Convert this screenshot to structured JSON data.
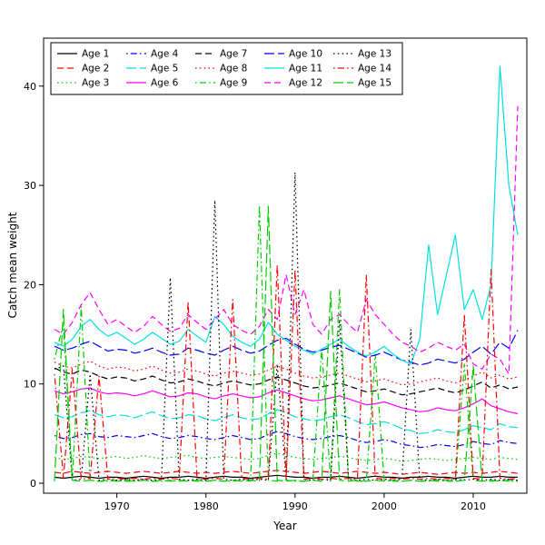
{
  "figure": {
    "background_color": "#ffffff",
    "axis_color": "#000000"
  },
  "chart_data": {
    "type": "line",
    "title": "",
    "xlabel": "Year",
    "ylabel": "Catch mean weight",
    "xlim": [
      1963,
      2015
    ],
    "ylim": [
      0,
      43
    ],
    "x_ticks": [
      1970,
      1980,
      1990,
      2000,
      2010
    ],
    "y_ticks": [
      0,
      10,
      20,
      30,
      40
    ],
    "grid": false,
    "legend_position": "top-left-inside",
    "legend_columns": 5,
    "x": [
      1963,
      1964,
      1965,
      1966,
      1967,
      1968,
      1969,
      1970,
      1971,
      1972,
      1973,
      1974,
      1975,
      1976,
      1977,
      1978,
      1979,
      1980,
      1981,
      1982,
      1983,
      1984,
      1985,
      1986,
      1987,
      1988,
      1989,
      1990,
      1991,
      1992,
      1993,
      1994,
      1995,
      1996,
      1997,
      1998,
      1999,
      2000,
      2001,
      2002,
      2003,
      2004,
      2005,
      2006,
      2007,
      2008,
      2009,
      2010,
      2011,
      2012,
      2013,
      2014,
      2015
    ],
    "series": [
      {
        "name": "Age 1",
        "color": "#000000",
        "linetype": "solid",
        "values": [
          0.6,
          0.5,
          0.6,
          0.7,
          0.6,
          0.5,
          0.6,
          0.6,
          0.5,
          0.6,
          0.7,
          0.6,
          0.5,
          0.6,
          0.6,
          0.7,
          0.6,
          0.5,
          0.6,
          0.7,
          0.6,
          0.6,
          0.5,
          0.6,
          0.7,
          0.8,
          0.7,
          0.6,
          0.6,
          0.5,
          0.6,
          0.6,
          0.7,
          0.6,
          0.5,
          0.6,
          0.7,
          0.6,
          0.6,
          0.5,
          0.6,
          0.6,
          0.7,
          0.6,
          0.6,
          0.5,
          0.6,
          0.7,
          0.6,
          0.6,
          0.7,
          0.6,
          0.6
        ]
      },
      {
        "name": "Age 2",
        "color": "#FF0000",
        "linetype": "dashed",
        "values": [
          1.1,
          1.0,
          1.2,
          1.1,
          1.0,
          1.1,
          1.2,
          1.1,
          1.0,
          1.1,
          1.2,
          1.1,
          1.0,
          1.1,
          1.2,
          1.1,
          1.0,
          1.1,
          1.0,
          1.1,
          1.2,
          1.1,
          1.0,
          1.1,
          1.2,
          1.3,
          1.2,
          1.1,
          1.0,
          1.1,
          1.2,
          1.1,
          1.0,
          1.1,
          1.2,
          1.1,
          1.0,
          1.1,
          1.0,
          0.9,
          1.0,
          1.1,
          1.0,
          0.9,
          1.0,
          1.1,
          1.0,
          1.1,
          1.0,
          1.1,
          1.2,
          1.1,
          1.0
        ]
      },
      {
        "name": "Age 3",
        "color": "#00CC00",
        "linetype": "dotted",
        "values": [
          2.6,
          2.4,
          2.5,
          2.7,
          2.6,
          2.5,
          2.6,
          2.7,
          2.5,
          2.6,
          2.8,
          2.6,
          2.5,
          2.6,
          2.7,
          2.8,
          2.6,
          2.5,
          2.6,
          2.7,
          2.6,
          2.5,
          2.4,
          2.5,
          2.8,
          3.0,
          2.8,
          2.6,
          2.5,
          2.4,
          2.5,
          2.6,
          2.7,
          2.6,
          2.4,
          2.3,
          2.4,
          2.5,
          2.4,
          2.2,
          2.3,
          2.4,
          2.5,
          2.4,
          2.3,
          2.4,
          2.5,
          2.6,
          2.5,
          2.4,
          2.6,
          2.5,
          2.4
        ]
      },
      {
        "name": "Age 4",
        "color": "#0000FF",
        "linetype": "dotdash",
        "values": [
          4.8,
          4.5,
          4.6,
          4.9,
          5.0,
          4.7,
          4.6,
          4.8,
          4.7,
          4.6,
          4.8,
          5.0,
          4.7,
          4.5,
          4.6,
          4.8,
          4.7,
          4.5,
          4.4,
          4.6,
          4.8,
          4.6,
          4.4,
          4.5,
          4.9,
          5.2,
          5.0,
          4.7,
          4.5,
          4.4,
          4.5,
          4.7,
          4.8,
          4.6,
          4.3,
          4.1,
          4.2,
          4.4,
          4.2,
          3.9,
          3.8,
          3.6,
          3.7,
          3.9,
          3.8,
          3.7,
          3.9,
          4.2,
          4.0,
          3.9,
          4.3,
          4.1,
          4.0
        ]
      },
      {
        "name": "Age 5",
        "color": "#00E0E0",
        "linetype": "longdash",
        "values": [
          6.9,
          6.6,
          6.7,
          7.1,
          7.3,
          6.9,
          6.7,
          6.9,
          6.8,
          6.6,
          6.9,
          7.2,
          6.8,
          6.5,
          6.6,
          6.9,
          6.8,
          6.5,
          6.3,
          6.6,
          6.9,
          6.6,
          6.4,
          6.5,
          7.0,
          7.4,
          7.1,
          6.7,
          6.5,
          6.3,
          6.4,
          6.7,
          6.9,
          6.6,
          6.2,
          5.9,
          6.0,
          6.2,
          5.9,
          5.5,
          5.3,
          5.0,
          5.1,
          5.4,
          5.2,
          5.1,
          5.4,
          5.8,
          5.6,
          5.4,
          6.0,
          5.7,
          5.6
        ]
      },
      {
        "name": "Age 6",
        "color": "#FF00FF",
        "linetype": "solid",
        "values": [
          9.3,
          9.0,
          9.2,
          9.5,
          9.6,
          9.2,
          9.0,
          9.1,
          9.0,
          8.8,
          9.0,
          9.3,
          9.0,
          8.7,
          8.8,
          9.1,
          9.0,
          8.7,
          8.5,
          8.8,
          9.0,
          8.8,
          8.6,
          8.7,
          9.1,
          9.4,
          9.1,
          8.8,
          8.5,
          8.3,
          8.4,
          8.6,
          8.8,
          8.5,
          8.2,
          7.9,
          8.0,
          8.2,
          7.9,
          7.6,
          7.4,
          7.2,
          7.3,
          7.6,
          7.4,
          7.3,
          7.6,
          8.0,
          8.5,
          7.8,
          7.5,
          7.2,
          7.0
        ]
      },
      {
        "name": "Age 7",
        "color": "#000000",
        "linetype": "dashed",
        "values": [
          11.6,
          11.2,
          11.0,
          11.4,
          11.2,
          10.8,
          10.5,
          10.7,
          10.6,
          10.3,
          10.5,
          10.8,
          10.4,
          10.1,
          10.2,
          10.5,
          10.3,
          10.0,
          9.8,
          10.1,
          10.3,
          10.1,
          9.9,
          10.0,
          10.4,
          10.7,
          10.4,
          10.1,
          9.8,
          9.6,
          9.7,
          9.9,
          10.1,
          9.8,
          9.5,
          9.2,
          9.3,
          9.5,
          9.2,
          8.9,
          9.0,
          9.2,
          9.4,
          9.6,
          9.3,
          9.1,
          9.4,
          9.8,
          10.2,
          9.6,
          9.9,
          9.5,
          9.7
        ]
      },
      {
        "name": "Age 8",
        "color": "#FF0000",
        "linetype": "dotted",
        "values": [
          12.2,
          11.8,
          11.6,
          12.0,
          12.3,
          11.8,
          11.5,
          11.7,
          11.6,
          11.3,
          11.5,
          11.8,
          11.4,
          11.1,
          11.2,
          11.5,
          11.3,
          11.0,
          10.8,
          11.1,
          11.3,
          11.1,
          10.9,
          11.0,
          11.4,
          11.8,
          11.5,
          11.1,
          10.8,
          10.6,
          10.7,
          10.9,
          11.1,
          10.8,
          10.5,
          10.2,
          10.3,
          10.5,
          10.2,
          9.9,
          10.0,
          10.2,
          10.4,
          10.6,
          10.3,
          10.1,
          10.4,
          10.8,
          11.2,
          10.6,
          10.9,
          10.5,
          10.7
        ]
      },
      {
        "name": "Age 9",
        "color": "#00CC00",
        "linetype": "dotdash",
        "values": [
          12.5,
          16.0,
          0.2,
          17.8,
          0.3,
          0.2,
          0.2,
          0.3,
          0.2,
          0.2,
          0.3,
          0.2,
          0.2,
          0.3,
          0.2,
          0.3,
          0.2,
          0.2,
          0.3,
          0.2,
          0.2,
          0.3,
          0.2,
          28.0,
          0.3,
          0.2,
          0.3,
          0.2,
          0.2,
          0.3,
          13.5,
          0.2,
          19.5,
          0.3,
          0.2,
          0.2,
          13.0,
          0.3,
          0.2,
          0.2,
          0.3,
          0.2,
          0.2,
          0.3,
          0.2,
          0.2,
          12.0,
          0.3,
          0.2,
          0.2,
          0.3,
          0.2,
          0.2
        ]
      },
      {
        "name": "Age 10",
        "color": "#0000FF",
        "linetype": "longdash",
        "values": [
          13.8,
          13.4,
          13.6,
          14.0,
          14.3,
          13.8,
          13.3,
          13.5,
          13.4,
          13.1,
          13.3,
          13.6,
          13.2,
          12.9,
          13.0,
          13.6,
          13.4,
          13.1,
          12.9,
          13.4,
          13.8,
          13.4,
          13.1,
          13.3,
          13.9,
          14.4,
          14.6,
          14.0,
          13.5,
          13.2,
          13.4,
          13.7,
          13.9,
          13.5,
          13.1,
          12.7,
          12.9,
          13.2,
          12.8,
          12.4,
          12.2,
          11.9,
          12.1,
          12.5,
          12.3,
          12.1,
          12.5,
          13.2,
          13.8,
          13.0,
          14.2,
          13.6,
          15.4
        ]
      },
      {
        "name": "Age 11",
        "color": "#00E0E0",
        "linetype": "solid",
        "values": [
          14.2,
          13.8,
          14.5,
          15.8,
          16.5,
          15.5,
          14.8,
          15.2,
          14.6,
          14.0,
          14.5,
          15.2,
          14.6,
          14.0,
          14.3,
          15.5,
          14.8,
          14.2,
          16.8,
          16.0,
          14.8,
          14.2,
          13.8,
          14.5,
          16.2,
          15.0,
          14.4,
          13.8,
          13.4,
          13.0,
          13.5,
          14.0,
          14.5,
          13.8,
          13.2,
          12.8,
          13.2,
          13.8,
          13.0,
          12.4,
          12.0,
          14.5,
          24.0,
          17.0,
          21.0,
          25.0,
          17.5,
          19.5,
          16.5,
          20.0,
          42.0,
          30.0,
          25.0
        ]
      },
      {
        "name": "Age 12",
        "color": "#FF00FF",
        "linetype": "dashed",
        "values": [
          15.5,
          15.0,
          16.2,
          18.0,
          19.2,
          17.5,
          16.0,
          16.5,
          15.8,
          15.2,
          15.8,
          16.8,
          16.0,
          15.3,
          15.6,
          17.0,
          16.2,
          15.5,
          16.5,
          17.5,
          16.0,
          15.4,
          15.0,
          15.8,
          17.5,
          16.5,
          21.0,
          17.0,
          19.5,
          16.0,
          15.0,
          16.5,
          17.0,
          16.0,
          15.2,
          18.5,
          17.0,
          16.0,
          15.0,
          14.2,
          13.8,
          13.2,
          13.6,
          14.2,
          13.8,
          13.4,
          14.0,
          12.0,
          11.5,
          13.0,
          12.5,
          11.0,
          38.0
        ]
      },
      {
        "name": "Age 13",
        "color": "#000000",
        "linetype": "dotted",
        "values": [
          11.5,
          11.8,
          0.3,
          0.4,
          11.0,
          0.3,
          0.4,
          0.3,
          0.4,
          0.3,
          0.4,
          0.3,
          0.4,
          20.7,
          0.4,
          0.3,
          0.4,
          0.3,
          28.5,
          0.4,
          0.3,
          0.4,
          0.3,
          0.4,
          0.3,
          12.0,
          0.4,
          31.3,
          0.4,
          0.3,
          0.4,
          0.3,
          16.5,
          0.4,
          0.3,
          0.4,
          0.3,
          0.4,
          0.3,
          0.4,
          15.5,
          0.4,
          0.3,
          0.4,
          0.3,
          0.4,
          0.3,
          0.4,
          0.3,
          0.4,
          0.3,
          0.4,
          0.3
        ]
      },
      {
        "name": "Age 14",
        "color": "#FF0000",
        "linetype": "dotdash",
        "values": [
          11.0,
          0.5,
          11.5,
          0.4,
          0.5,
          10.8,
          0.4,
          0.5,
          0.4,
          0.5,
          0.4,
          0.5,
          0.4,
          0.5,
          0.4,
          18.3,
          0.5,
          0.4,
          0.5,
          0.4,
          18.5,
          0.5,
          0.4,
          0.5,
          0.4,
          22.0,
          0.5,
          21.5,
          0.4,
          0.5,
          0.4,
          0.5,
          0.4,
          0.5,
          0.4,
          21.0,
          0.5,
          0.4,
          0.5,
          0.4,
          0.5,
          0.4,
          0.5,
          0.4,
          0.5,
          0.4,
          17.0,
          0.5,
          0.4,
          21.5,
          0.5,
          0.4,
          0.5
        ]
      },
      {
        "name": "Age 15",
        "color": "#00CC00",
        "linetype": "longdash",
        "values": [
          0.2,
          17.5,
          0.3,
          0.2,
          0.3,
          0.2,
          0.3,
          0.2,
          0.3,
          0.2,
          0.3,
          0.2,
          0.3,
          0.2,
          0.3,
          0.2,
          0.3,
          0.2,
          0.3,
          0.2,
          0.3,
          0.2,
          0.3,
          0.2,
          27.9,
          0.3,
          0.2,
          0.3,
          0.2,
          0.3,
          0.2,
          19.3,
          0.3,
          0.2,
          0.3,
          0.2,
          0.3,
          0.2,
          0.3,
          0.2,
          0.3,
          0.2,
          0.3,
          0.2,
          0.3,
          0.2,
          0.3,
          11.8,
          0.2,
          0.3,
          0.2,
          0.3,
          0.2
        ]
      }
    ]
  }
}
